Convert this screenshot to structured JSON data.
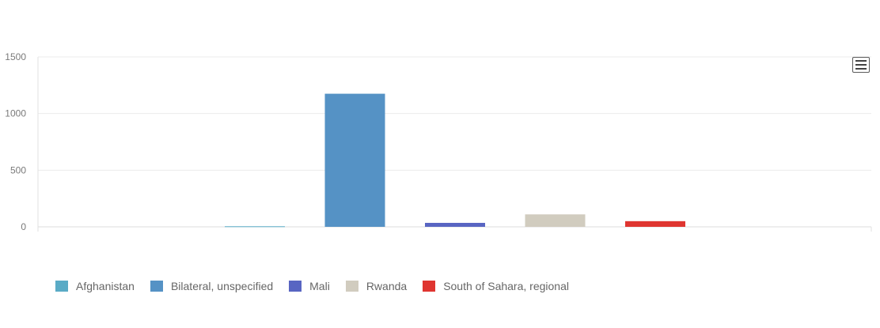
{
  "chart_data": {
    "type": "bar",
    "categories": [
      "Afghanistan",
      "Bilateral, unspecified",
      "Mali",
      "Rwanda",
      "South of Sahara, regional"
    ],
    "values": [
      5,
      1175,
      35,
      110,
      50
    ],
    "colors": [
      "#5aabc6",
      "#5592c5",
      "#5865c2",
      "#d1ccbf",
      "#df3530"
    ],
    "ylim": [
      0,
      1500
    ],
    "yticks": [
      0,
      500,
      1000,
      1500
    ],
    "grid": true,
    "legend_position": "bottom-left",
    "title": "",
    "xlabel": "",
    "ylabel": ""
  },
  "ui": {
    "menu_icon": "hamburger-menu-icon"
  }
}
